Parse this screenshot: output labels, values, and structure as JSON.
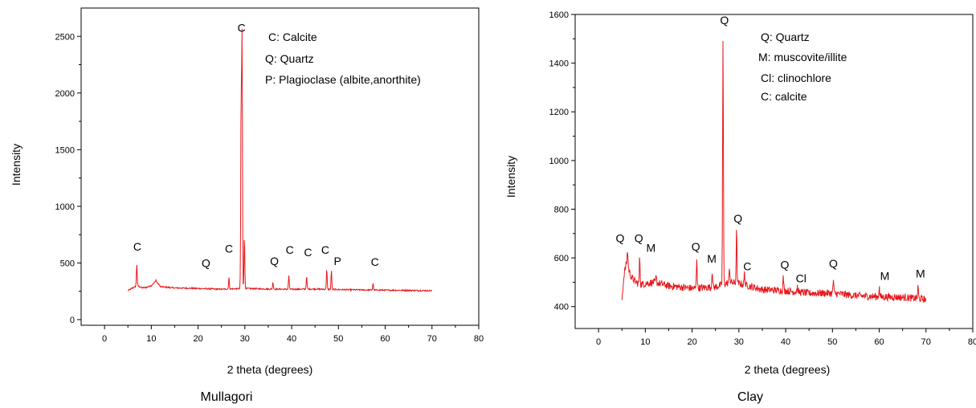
{
  "chart_data": [
    {
      "type": "line",
      "caption": "Mullagori",
      "xlabel": "2 theta (degrees)",
      "ylabel": "Intensity",
      "xlim": [
        -5,
        80
      ],
      "ylim": [
        -50,
        2750
      ],
      "xticks": [
        0,
        10,
        20,
        30,
        40,
        50,
        60,
        70,
        80
      ],
      "yticks": [
        0,
        500,
        1000,
        1500,
        2000,
        2500
      ],
      "legend": [
        "C: Calcite",
        "Q: Quartz",
        "P: Plagioclase (albite,anorthite)"
      ],
      "color": "#e8181c",
      "baseline": [
        [
          5,
          255
        ],
        [
          6,
          280
        ],
        [
          7,
          300
        ],
        [
          8,
          280
        ],
        [
          9,
          285
        ],
        [
          10,
          300
        ],
        [
          11,
          340
        ],
        [
          12,
          290
        ],
        [
          15,
          280
        ],
        [
          20,
          275
        ],
        [
          25,
          268
        ],
        [
          30,
          275
        ],
        [
          35,
          270
        ],
        [
          40,
          268
        ],
        [
          45,
          270
        ],
        [
          50,
          265
        ],
        [
          55,
          262
        ],
        [
          60,
          260
        ],
        [
          65,
          258
        ],
        [
          70,
          255
        ]
      ],
      "peaks": [
        [
          6.9,
          490
        ],
        [
          11,
          350
        ],
        [
          26.6,
          370
        ],
        [
          29.4,
          2470
        ],
        [
          29.2,
          1850
        ],
        [
          29.9,
          720
        ],
        [
          36,
          330
        ],
        [
          39.4,
          390
        ],
        [
          43.2,
          380
        ],
        [
          47.5,
          440
        ],
        [
          48.5,
          430
        ],
        [
          57.4,
          320
        ]
      ],
      "annotations": [
        {
          "label": "C",
          "x": 7,
          "y": 610
        },
        {
          "label": "Q",
          "x": 21.7,
          "y": 465
        },
        {
          "label": "C",
          "x": 26.6,
          "y": 590
        },
        {
          "label": "C",
          "x": 29.3,
          "y": 2540
        },
        {
          "label": "Q",
          "x": 36.3,
          "y": 480
        },
        {
          "label": "C",
          "x": 39.6,
          "y": 580
        },
        {
          "label": "C",
          "x": 43.5,
          "y": 560
        },
        {
          "label": "C",
          "x": 47.2,
          "y": 580
        },
        {
          "label": "P",
          "x": 49.8,
          "y": 480
        },
        {
          "label": "C",
          "x": 57.8,
          "y": 475
        }
      ]
    },
    {
      "type": "line",
      "caption": "Clay",
      "xlabel": "2 theta (degrees)",
      "ylabel": "Intensity",
      "xlim": [
        -5,
        80
      ],
      "ylim": [
        310,
        1600
      ],
      "xticks": [
        0,
        10,
        20,
        30,
        40,
        50,
        60,
        70,
        80
      ],
      "yticks": [
        400,
        600,
        800,
        1000,
        1200,
        1400,
        1600
      ],
      "legend": [
        "Q: Quartz",
        "M: muscovite/illite",
        "Cl: clinochlore",
        "C: calcite"
      ],
      "color": "#e8181c",
      "baseline": [
        [
          5,
          430
        ],
        [
          5.5,
          540
        ],
        [
          6,
          580
        ],
        [
          7,
          520
        ],
        [
          8,
          500
        ],
        [
          9,
          490
        ],
        [
          10,
          495
        ],
        [
          12,
          500
        ],
        [
          15,
          485
        ],
        [
          20,
          475
        ],
        [
          25,
          480
        ],
        [
          28,
          500
        ],
        [
          30,
          495
        ],
        [
          35,
          470
        ],
        [
          40,
          465
        ],
        [
          45,
          455
        ],
        [
          50,
          455
        ],
        [
          55,
          445
        ],
        [
          60,
          440
        ],
        [
          65,
          438
        ],
        [
          70,
          430
        ]
      ],
      "peaks": [
        [
          6.2,
          630
        ],
        [
          8.8,
          600
        ],
        [
          12.3,
          520
        ],
        [
          21,
          600
        ],
        [
          24.3,
          550
        ],
        [
          26.6,
          1490
        ],
        [
          28,
          560
        ],
        [
          29.5,
          710
        ],
        [
          31.2,
          540
        ],
        [
          39.5,
          520
        ],
        [
          42.5,
          480
        ],
        [
          50.2,
          510
        ],
        [
          60,
          480
        ],
        [
          68.3,
          480
        ]
      ],
      "annotations": [
        {
          "label": "Q",
          "x": 4.6,
          "y": 665
        },
        {
          "label": "Q",
          "x": 8.6,
          "y": 665
        },
        {
          "label": "M",
          "x": 11.2,
          "y": 625
        },
        {
          "label": "Q",
          "x": 20.8,
          "y": 630
        },
        {
          "label": "M",
          "x": 24.2,
          "y": 580
        },
        {
          "label": "Q",
          "x": 26.9,
          "y": 1560
        },
        {
          "label": "Q",
          "x": 29.8,
          "y": 745
        },
        {
          "label": "C",
          "x": 31.8,
          "y": 550
        },
        {
          "label": "Q",
          "x": 39.8,
          "y": 555
        },
        {
          "label": "Cl",
          "x": 43.3,
          "y": 500
        },
        {
          "label": "Q",
          "x": 50.2,
          "y": 560
        },
        {
          "label": "M",
          "x": 61.2,
          "y": 510
        },
        {
          "label": "M",
          "x": 68.8,
          "y": 520
        }
      ]
    }
  ]
}
